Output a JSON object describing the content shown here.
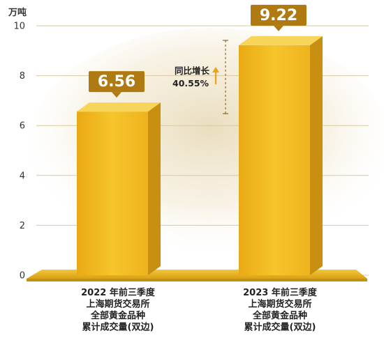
{
  "chart_data": {
    "type": "bar",
    "unit": "万吨",
    "ylim": [
      0,
      10
    ],
    "yticks": [
      "0",
      "2",
      "4",
      "6",
      "8",
      "10"
    ],
    "categories": [
      [
        "2022 年前三季度",
        "上海期货交易所",
        "全部黄金品种",
        "累计成交量(双边)"
      ],
      [
        "2023 年前三季度",
        "上海期货交易所",
        "全部黄金品种",
        "累计成交量(双边)"
      ]
    ],
    "values": [
      6.56,
      9.22
    ],
    "data_labels": [
      "6.56",
      "9.22"
    ],
    "annotation": {
      "line1": "同比增长",
      "line2": "40.55%"
    },
    "grid": true,
    "colors": {
      "bar_front": "#f2b81e",
      "bar_side": "#c98f10",
      "bar_top": "#f7d55a",
      "label_box": "#b07a12",
      "floor": "#e8b520",
      "grid": "#d9c9a0",
      "arrow": "#f0a01a"
    }
  }
}
